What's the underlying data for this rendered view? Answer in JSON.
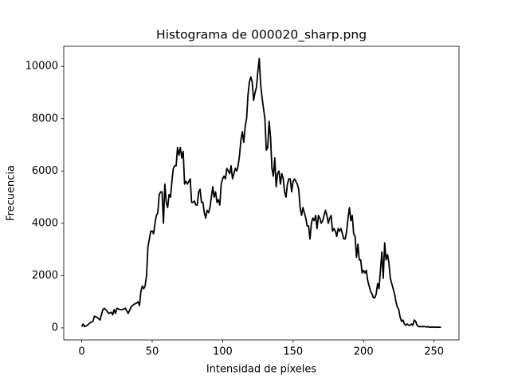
{
  "chart_data": {
    "type": "line",
    "title": "Histograma de 000020_sharp.png",
    "xlabel": "Intensidad de píxeles",
    "ylabel": "Frecuencia",
    "color": "#000000",
    "x": [
      0,
      1,
      2,
      4,
      6,
      8,
      9,
      11,
      13,
      14,
      15,
      16,
      18,
      19,
      21,
      22,
      23,
      24,
      25,
      27,
      29,
      31,
      32,
      33,
      35,
      37,
      39,
      40,
      41,
      42,
      43,
      44,
      45,
      46,
      47,
      48,
      49,
      50,
      51,
      52,
      53,
      54,
      55,
      56,
      57,
      58,
      59,
      60,
      61,
      62,
      63,
      64,
      65,
      66,
      67,
      68,
      69,
      70,
      71,
      72,
      73,
      74,
      75,
      76,
      77,
      78,
      79,
      80,
      81,
      82,
      83,
      84,
      85,
      86,
      87,
      88,
      89,
      90,
      91,
      92,
      93,
      94,
      95,
      96,
      97,
      98,
      99,
      100,
      101,
      102,
      103,
      104,
      105,
      106,
      107,
      108,
      109,
      110,
      111,
      112,
      113,
      114,
      115,
      116,
      117,
      118,
      119,
      120,
      121,
      122,
      123,
      124,
      125,
      126,
      127,
      128,
      129,
      130,
      131,
      132,
      133,
      134,
      135,
      136,
      137,
      138,
      139,
      140,
      141,
      142,
      143,
      144,
      145,
      146,
      147,
      148,
      149,
      150,
      151,
      152,
      153,
      154,
      155,
      156,
      157,
      158,
      159,
      160,
      161,
      162,
      163,
      164,
      165,
      166,
      167,
      168,
      169,
      170,
      171,
      172,
      173,
      174,
      175,
      176,
      177,
      178,
      179,
      180,
      181,
      182,
      183,
      184,
      185,
      186,
      187,
      188,
      189,
      190,
      191,
      192,
      193,
      194,
      195,
      196,
      197,
      198,
      199,
      200,
      201,
      202,
      203,
      204,
      205,
      206,
      207,
      208,
      209,
      210,
      211,
      212,
      213,
      214,
      215,
      216,
      217,
      218,
      219,
      220,
      221,
      222,
      223,
      224,
      225,
      226,
      227,
      228,
      229,
      230,
      231,
      232,
      233,
      234,
      235,
      236,
      237,
      238,
      239,
      240,
      242,
      244,
      245,
      246,
      247,
      248,
      250,
      252,
      253,
      255
    ],
    "values": [
      50,
      150,
      50,
      100,
      200,
      250,
      450,
      400,
      300,
      500,
      700,
      750,
      650,
      550,
      600,
      500,
      700,
      550,
      750,
      700,
      700,
      750,
      650,
      550,
      800,
      900,
      950,
      1000,
      850,
      1400,
      1600,
      1500,
      1600,
      2000,
      3100,
      3400,
      3700,
      3700,
      3600,
      4000,
      4300,
      4400,
      5100,
      5200,
      5200,
      4000,
      5500,
      4800,
      4600,
      5100,
      5000,
      5600,
      6100,
      6200,
      6200,
      6900,
      6600,
      6900,
      6500,
      6750,
      5500,
      5600,
      5500,
      5600,
      5700,
      4800,
      4800,
      4850,
      4700,
      4700,
      5200,
      5300,
      4800,
      4800,
      4400,
      4200,
      4500,
      4400,
      4600,
      5000,
      5400,
      5000,
      5200,
      4800,
      4900,
      4700,
      5500,
      5700,
      5800,
      5700,
      6100,
      6000,
      5900,
      6200,
      5700,
      5900,
      6100,
      6000,
      6200,
      6600,
      7200,
      7500,
      7100,
      7700,
      8000,
      8900,
      9400,
      9600,
      9400,
      8700,
      9000,
      9200,
      9800,
      10300,
      9300,
      8800,
      8400,
      8000,
      6800,
      6900,
      7900,
      7300,
      6100,
      5800,
      6500,
      5400,
      5900,
      6000,
      5500,
      5900,
      5700,
      5200,
      5000,
      5500,
      5700,
      5700,
      5200,
      5600,
      5700,
      5600,
      5500,
      5300,
      4600,
      4300,
      4600,
      4400,
      4200,
      3900,
      3900,
      3400,
      4000,
      4200,
      4100,
      4300,
      3800,
      4300,
      4200,
      4000,
      4100,
      4300,
      4500,
      4300,
      4000,
      4200,
      4300,
      3700,
      3800,
      3700,
      3500,
      3800,
      3700,
      3800,
      3600,
      3400,
      3400,
      3700,
      4200,
      4600,
      4100,
      4300,
      3600,
      3500,
      2700,
      3200,
      2600,
      2600,
      2100,
      2200,
      2100,
      2200,
      1800,
      1600,
      1400,
      1300,
      1150,
      1150,
      1300,
      1700,
      1500,
      2200,
      2900,
      1900,
      3250,
      2600,
      2800,
      2500,
      1900,
      1700,
      1500,
      1300,
      1000,
      800,
      700,
      400,
      250,
      300,
      150,
      100,
      150,
      100,
      100,
      150,
      100,
      300,
      250,
      100,
      50,
      50,
      50,
      50,
      30,
      50,
      20,
      30,
      30,
      20,
      30,
      20
    ],
    "xlim": [
      -12.75,
      267.75
    ],
    "xticks": [
      0,
      50,
      100,
      150,
      200,
      250
    ],
    "ylim": [
      -460,
      10770
    ],
    "yticks": [
      0,
      2000,
      4000,
      6000,
      8000,
      10000
    ],
    "grid": false
  }
}
